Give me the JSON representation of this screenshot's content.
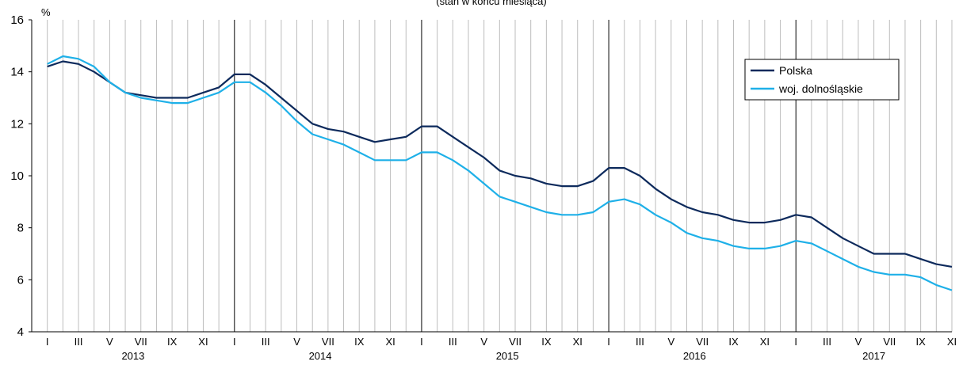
{
  "chart_data": {
    "type": "line",
    "subtitle": "(stan w końcu miesiąca)",
    "ylabel": "%",
    "ylim": [
      4,
      16
    ],
    "yticks": [
      4,
      6,
      8,
      10,
      12,
      14,
      16
    ],
    "grid": true,
    "legend_position": "top-right",
    "month_labels": [
      "I",
      "",
      "III",
      "",
      "V",
      "",
      "VII",
      "",
      "IX",
      "",
      "XI",
      ""
    ],
    "years": [
      "2013",
      "2014",
      "2015",
      "2016",
      "2017"
    ],
    "series": [
      {
        "name": "Polska",
        "color": "#0d2a5c",
        "values": [
          14.2,
          14.4,
          14.3,
          14.0,
          13.6,
          13.2,
          13.1,
          13.0,
          13.0,
          13.0,
          13.2,
          13.4,
          13.9,
          13.9,
          13.5,
          13.0,
          12.5,
          12.0,
          11.8,
          11.7,
          11.5,
          11.3,
          11.4,
          11.5,
          11.9,
          11.9,
          11.5,
          11.1,
          10.7,
          10.2,
          10.0,
          9.9,
          9.7,
          9.6,
          9.6,
          9.8,
          10.3,
          10.3,
          10.0,
          9.5,
          9.1,
          8.8,
          8.6,
          8.5,
          8.3,
          8.2,
          8.2,
          8.3,
          8.5,
          8.4,
          8.0,
          7.6,
          7.3,
          7.0,
          7.0,
          7.0,
          6.8,
          6.6,
          6.5
        ]
      },
      {
        "name": "woj. dolnośląskie",
        "color": "#1eb0e8",
        "values": [
          14.3,
          14.6,
          14.5,
          14.2,
          13.6,
          13.2,
          13.0,
          12.9,
          12.8,
          12.8,
          13.0,
          13.2,
          13.6,
          13.6,
          13.2,
          12.7,
          12.1,
          11.6,
          11.4,
          11.2,
          10.9,
          10.6,
          10.6,
          10.6,
          10.9,
          10.9,
          10.6,
          10.2,
          9.7,
          9.2,
          9.0,
          8.8,
          8.6,
          8.5,
          8.5,
          8.6,
          9.0,
          9.1,
          8.9,
          8.5,
          8.2,
          7.8,
          7.6,
          7.5,
          7.3,
          7.2,
          7.2,
          7.3,
          7.5,
          7.4,
          7.1,
          6.8,
          6.5,
          6.3,
          6.2,
          6.2,
          6.1,
          5.8,
          5.6
        ]
      }
    ]
  }
}
